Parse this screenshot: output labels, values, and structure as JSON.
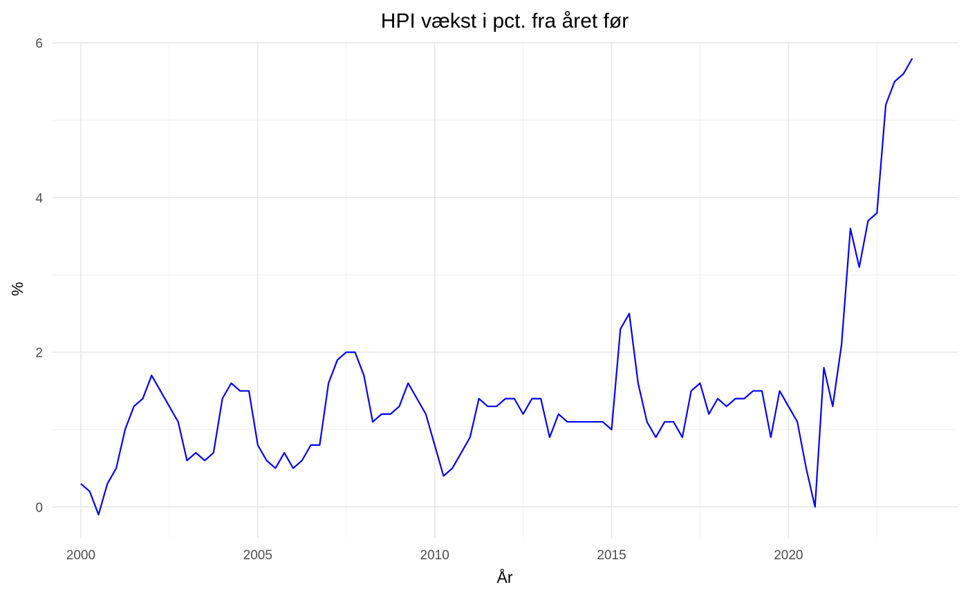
{
  "chart_data": {
    "type": "line",
    "title": "HPI vækst i pct. fra året før",
    "xlabel": "År",
    "ylabel": "%",
    "xlim": [
      1999.2,
      2024.8
    ],
    "ylim": [
      -0.4,
      6.0
    ],
    "x_ticks": [
      2000,
      2005,
      2010,
      2015,
      2020
    ],
    "x_tick_labels": [
      "2000",
      "2005",
      "2010",
      "2015",
      "2020"
    ],
    "x_minor_ticks": [
      2002.5,
      2007.5,
      2012.5,
      2017.5,
      2022.5
    ],
    "y_ticks": [
      0,
      2,
      4,
      6
    ],
    "y_tick_labels": [
      "0",
      "2",
      "4",
      "6"
    ],
    "y_minor_ticks": [
      1,
      3,
      5
    ],
    "grid": true,
    "legend": "none",
    "series": [
      {
        "color": "#0000ff",
        "x": [
          2000.0,
          2000.25,
          2000.5,
          2000.75,
          2001.0,
          2001.25,
          2001.5,
          2001.75,
          2002.0,
          2002.25,
          2002.5,
          2002.75,
          2003.0,
          2003.25,
          2003.5,
          2003.75,
          2004.0,
          2004.25,
          2004.5,
          2004.75,
          2005.0,
          2005.25,
          2005.5,
          2005.75,
          2006.0,
          2006.25,
          2006.5,
          2006.75,
          2007.0,
          2007.25,
          2007.5,
          2007.75,
          2008.0,
          2008.25,
          2008.5,
          2008.75,
          2009.0,
          2009.25,
          2009.5,
          2009.75,
          2010.0,
          2010.25,
          2010.5,
          2010.75,
          2011.0,
          2011.25,
          2011.5,
          2011.75,
          2012.0,
          2012.25,
          2012.5,
          2012.75,
          2013.0,
          2013.25,
          2013.5,
          2013.75,
          2014.0,
          2014.25,
          2014.5,
          2014.75,
          2015.0,
          2015.25,
          2015.5,
          2015.75,
          2016.0,
          2016.25,
          2016.5,
          2016.75,
          2017.0,
          2017.25,
          2017.5,
          2017.75,
          2018.0,
          2018.25,
          2018.5,
          2018.75,
          2019.0,
          2019.25,
          2019.5,
          2019.75,
          2020.0,
          2020.25,
          2020.5,
          2020.75,
          2021.0,
          2021.25,
          2021.5,
          2021.75,
          2022.0,
          2022.25,
          2022.5,
          2022.75,
          2023.0,
          2023.25,
          2023.5
        ],
        "y": [
          0.3,
          0.2,
          -0.1,
          0.3,
          0.5,
          1.0,
          1.3,
          1.4,
          1.7,
          1.5,
          1.3,
          1.1,
          0.6,
          0.7,
          0.6,
          0.7,
          1.4,
          1.6,
          1.5,
          1.5,
          0.8,
          0.6,
          0.5,
          0.7,
          0.5,
          0.6,
          0.8,
          0.8,
          1.6,
          1.9,
          2.0,
          2.0,
          1.7,
          1.1,
          1.2,
          1.2,
          1.3,
          1.6,
          1.4,
          1.2,
          0.8,
          0.4,
          0.5,
          0.7,
          0.9,
          1.4,
          1.3,
          1.3,
          1.4,
          1.4,
          1.2,
          1.4,
          1.4,
          0.9,
          1.2,
          1.1,
          1.1,
          1.1,
          1.1,
          1.1,
          1.0,
          2.3,
          2.5,
          1.6,
          1.1,
          0.9,
          1.1,
          1.1,
          0.9,
          1.5,
          1.6,
          1.2,
          1.4,
          1.3,
          1.4,
          1.4,
          1.5,
          1.5,
          0.9,
          1.5,
          1.3,
          1.1,
          0.5,
          0.0,
          1.8,
          1.3,
          2.1,
          3.6,
          3.1,
          3.7,
          3.8,
          5.2,
          5.5,
          5.6,
          5.8
        ]
      }
    ]
  }
}
